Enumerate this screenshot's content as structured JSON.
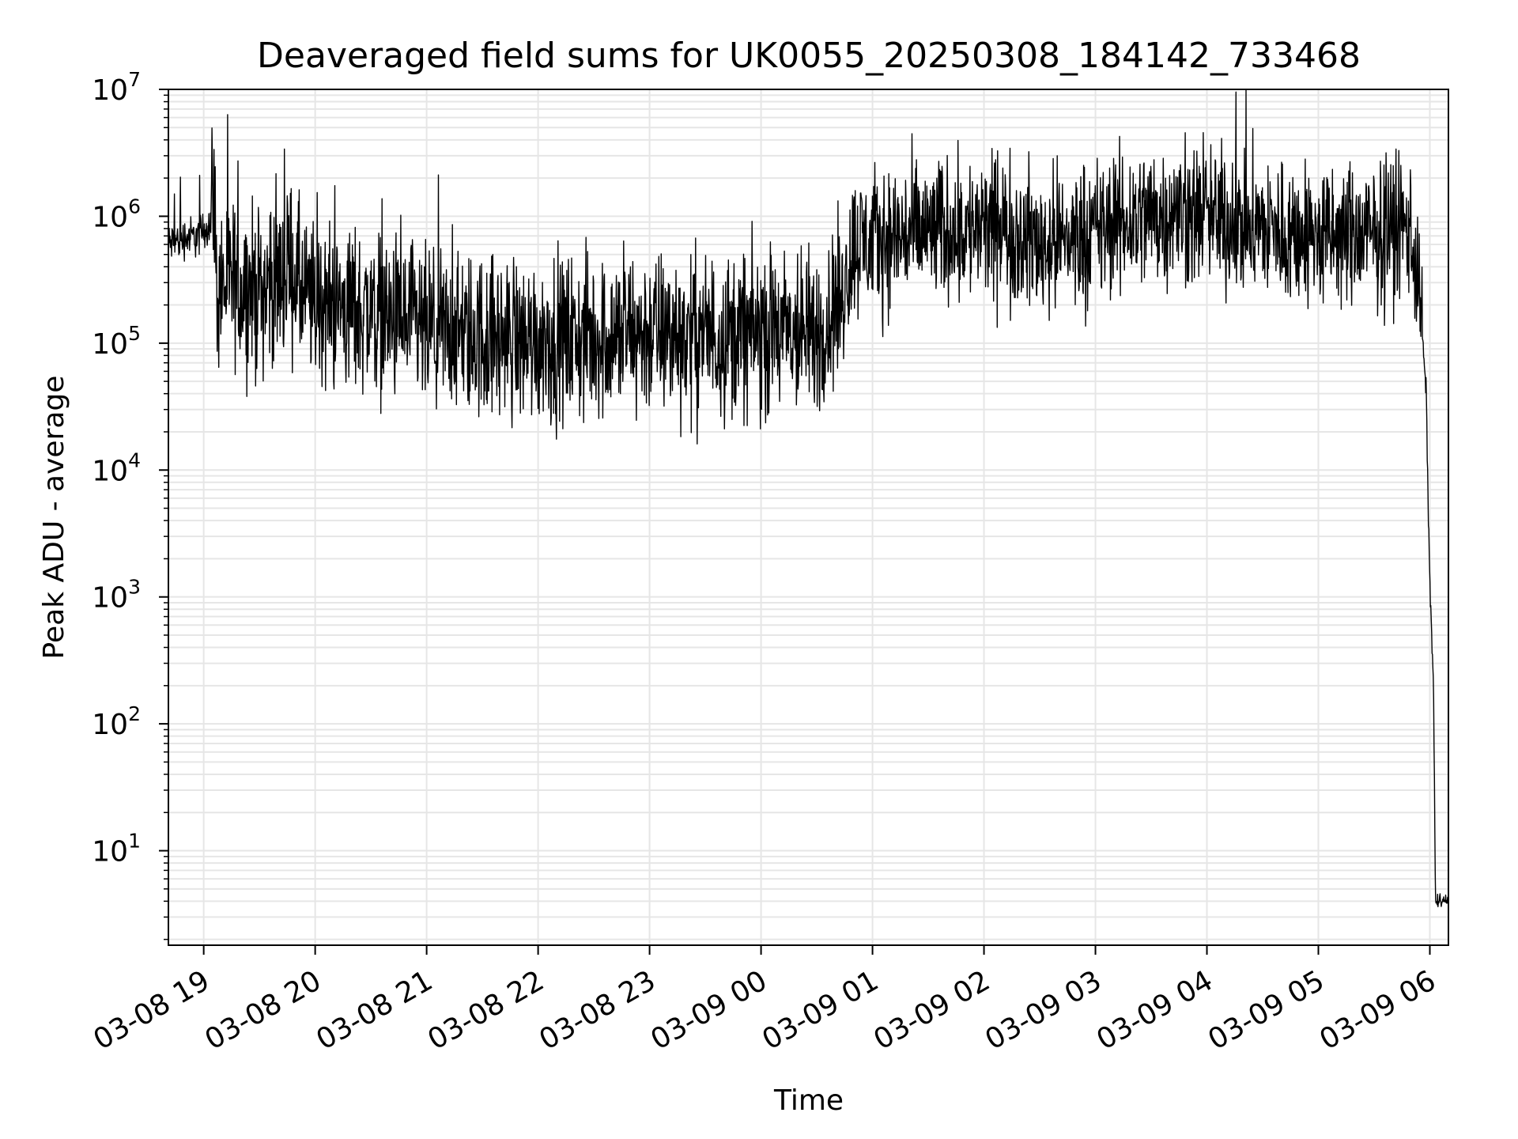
{
  "chart_data": {
    "type": "line",
    "title": "Deaveraged field sums for UK0055_20250308_184142_733468",
    "xlabel": "Time",
    "ylabel": "Peak ADU - average",
    "yscale": "log",
    "ylim": [
      1.8,
      10000000
    ],
    "xlim": [
      "2025-03-08 18:41",
      "2025-03-09 06:10"
    ],
    "grid": true,
    "x_ticks": [
      "03-08 19",
      "03-08 20",
      "03-08 21",
      "03-08 22",
      "03-08 23",
      "03-09 00",
      "03-09 01",
      "03-09 02",
      "03-09 03",
      "03-09 04",
      "03-09 05",
      "03-09 06"
    ],
    "y_ticks": [
      {
        "base": "10",
        "exp": "1",
        "value": 10
      },
      {
        "base": "10",
        "exp": "2",
        "value": 100
      },
      {
        "base": "10",
        "exp": "3",
        "value": 1000
      },
      {
        "base": "10",
        "exp": "4",
        "value": 10000
      },
      {
        "base": "10",
        "exp": "5",
        "value": 100000
      },
      {
        "base": "10",
        "exp": "6",
        "value": 1000000
      },
      {
        "base": "10",
        "exp": "7",
        "value": 10000000
      }
    ],
    "line_color": "#000000",
    "grid_color": "#e6e6e6",
    "series": [
      {
        "x": [
          "2025-03-08 18:41",
          "2025-03-08 18:50",
          "2025-03-08 18:58",
          "2025-03-08 19:04",
          "2025-03-08 19:05",
          "2025-03-08 19:07",
          "2025-03-08 19:10",
          "2025-03-08 19:30",
          "2025-03-08 19:48",
          "2025-03-08 19:55",
          "2025-03-08 20:30",
          "2025-03-08 21:00",
          "2025-03-08 21:30",
          "2025-03-08 22:00",
          "2025-03-08 22:30",
          "2025-03-08 23:00",
          "2025-03-08 23:30",
          "2025-03-09 00:00",
          "2025-03-09 00:30",
          "2025-03-09 00:43",
          "2025-03-09 00:50",
          "2025-03-09 01:15",
          "2025-03-09 01:45",
          "2025-03-09 02:15",
          "2025-03-09 02:30",
          "2025-03-09 03:00",
          "2025-03-09 03:30",
          "2025-03-09 04:00",
          "2025-03-09 04:30",
          "2025-03-09 05:00",
          "2025-03-09 05:30",
          "2025-03-09 05:50",
          "2025-03-09 05:55",
          "2025-03-09 05:58",
          "2025-03-09 06:00",
          "2025-03-09 06:01",
          "2025-03-09 06:02",
          "2025-03-09 06:03",
          "2025-03-09 06:04",
          "2025-03-09 06:10"
        ],
        "y": [
          600000,
          680000,
          700000,
          900000,
          2800000,
          250000,
          300000,
          260000,
          380000,
          210000,
          180000,
          120000,
          110000,
          105000,
          110000,
          120000,
          115000,
          120000,
          115000,
          220000,
          600000,
          700000,
          800000,
          750000,
          600000,
          750000,
          1050000,
          1000000,
          800000,
          680000,
          700000,
          850000,
          200000,
          40000,
          1200,
          500,
          200,
          4,
          4,
          4
        ]
      }
    ]
  }
}
